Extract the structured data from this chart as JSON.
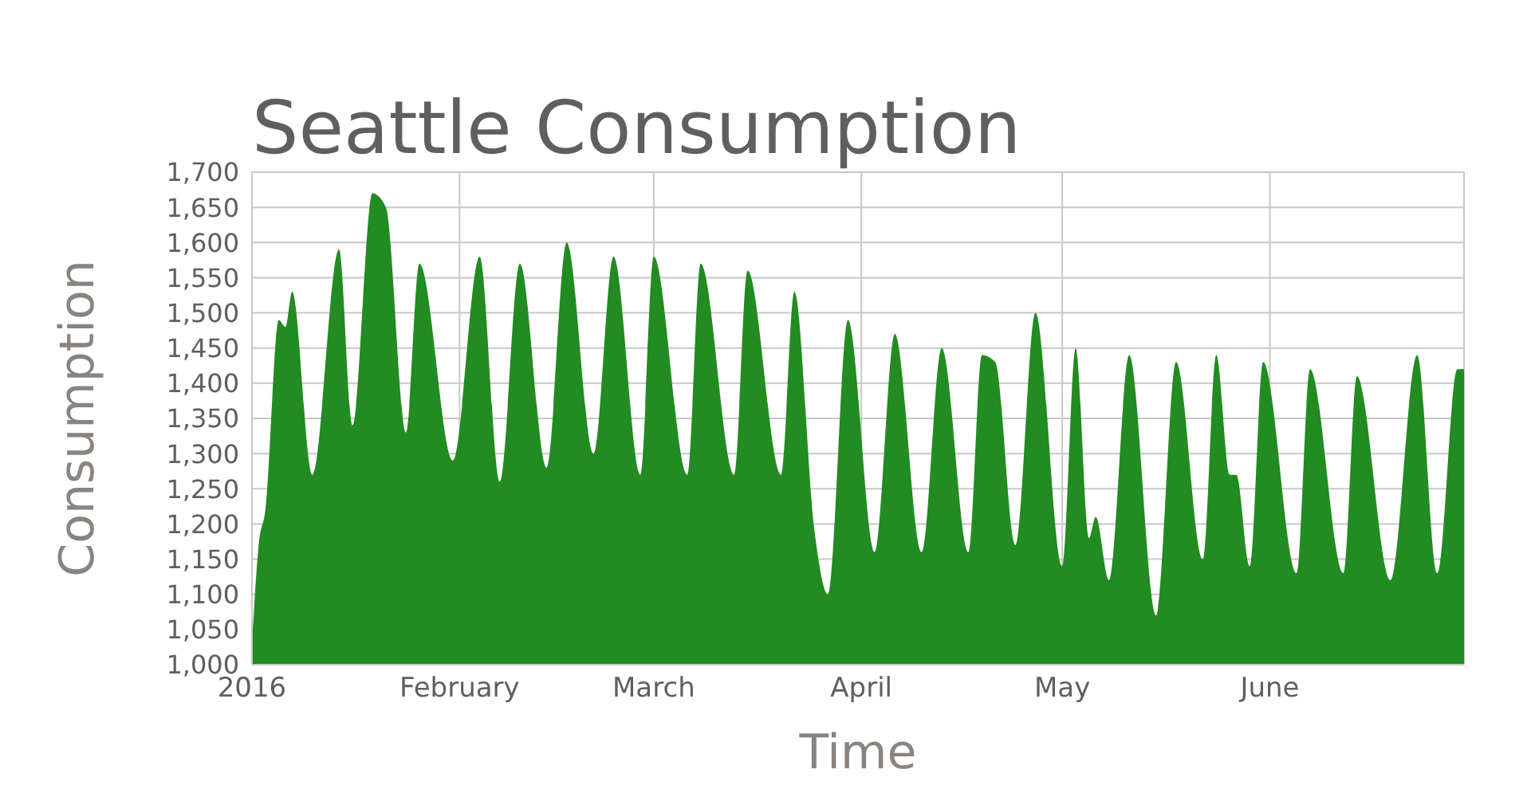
{
  "chart_data": {
    "type": "area",
    "title": "Seattle Consumption",
    "xlabel": "Time",
    "ylabel": "Consumption",
    "color": "#228b22",
    "grid": true,
    "x": [
      "2016-01-01",
      "2016-01-02",
      "2016-01-03",
      "2016-01-05",
      "2016-01-06",
      "2016-01-07",
      "2016-01-10",
      "2016-01-14",
      "2016-01-16",
      "2016-01-19",
      "2016-01-21",
      "2016-01-24",
      "2016-01-26",
      "2016-01-31",
      "2016-02-04",
      "2016-02-07",
      "2016-02-10",
      "2016-02-14",
      "2016-02-17",
      "2016-02-21",
      "2016-02-24",
      "2016-02-28",
      "2016-03-01",
      "2016-03-06",
      "2016-03-08",
      "2016-03-13",
      "2016-03-15",
      "2016-03-20",
      "2016-03-22",
      "2016-03-25",
      "2016-03-27",
      "2016-03-30",
      "2016-04-03",
      "2016-04-06",
      "2016-04-10",
      "2016-04-13",
      "2016-04-17",
      "2016-04-19",
      "2016-04-21",
      "2016-04-24",
      "2016-04-27",
      "2016-05-01",
      "2016-05-03",
      "2016-05-05",
      "2016-05-06",
      "2016-05-08",
      "2016-05-11",
      "2016-05-15",
      "2016-05-18",
      "2016-05-22",
      "2016-05-24",
      "2016-05-26",
      "2016-05-27",
      "2016-05-29",
      "2016-05-31",
      "2016-06-05",
      "2016-06-07",
      "2016-06-12",
      "2016-06-14",
      "2016-06-19",
      "2016-06-23",
      "2016-06-26",
      "2016-06-29",
      "2016-06-30"
    ],
    "values": [
      1030,
      1170,
      1220,
      1490,
      1480,
      1530,
      1270,
      1590,
      1340,
      1670,
      1650,
      1330,
      1570,
      1290,
      1580,
      1260,
      1570,
      1280,
      1600,
      1300,
      1580,
      1270,
      1580,
      1270,
      1570,
      1270,
      1560,
      1270,
      1530,
      1190,
      1100,
      1490,
      1160,
      1470,
      1160,
      1450,
      1160,
      1440,
      1430,
      1170,
      1500,
      1140,
      1450,
      1180,
      1210,
      1120,
      1440,
      1070,
      1430,
      1150,
      1440,
      1270,
      1270,
      1140,
      1430,
      1130,
      1420,
      1130,
      1410,
      1120,
      1440,
      1130,
      1420,
      1420
    ],
    "xlim": [
      "2016-01-01",
      "2016-06-30"
    ],
    "xticks": [
      {
        "value": "2016-01-01",
        "label": "2016"
      },
      {
        "value": "2016-02-01",
        "label": "February"
      },
      {
        "value": "2016-03-01",
        "label": "March"
      },
      {
        "value": "2016-04-01",
        "label": "April"
      },
      {
        "value": "2016-05-01",
        "label": "May"
      },
      {
        "value": "2016-06-01",
        "label": "June"
      }
    ],
    "ylim": [
      1000,
      1700
    ],
    "yticks": [
      {
        "value": 1000,
        "label": "1,000"
      },
      {
        "value": 1050,
        "label": "1,050"
      },
      {
        "value": 1100,
        "label": "1,100"
      },
      {
        "value": 1150,
        "label": "1,150"
      },
      {
        "value": 1200,
        "label": "1,200"
      },
      {
        "value": 1250,
        "label": "1,250"
      },
      {
        "value": 1300,
        "label": "1,300"
      },
      {
        "value": 1350,
        "label": "1,350"
      },
      {
        "value": 1400,
        "label": "1,400"
      },
      {
        "value": 1450,
        "label": "1,450"
      },
      {
        "value": 1500,
        "label": "1,500"
      },
      {
        "value": 1550,
        "label": "1,550"
      },
      {
        "value": 1600,
        "label": "1,600"
      },
      {
        "value": 1650,
        "label": "1,650"
      },
      {
        "value": 1700,
        "label": "1,700"
      }
    ]
  }
}
